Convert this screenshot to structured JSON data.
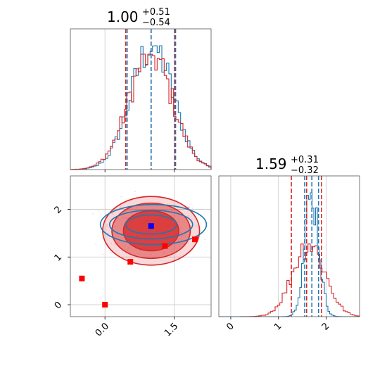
{
  "chart_data": {
    "type": "corner",
    "parameters": [
      "param_0",
      "param_1"
    ],
    "titles": [
      {
        "value": "1.00",
        "plus": "+0.51",
        "minus": "−0.54"
      },
      {
        "value": "1.59",
        "plus": "+0.31",
        "minus": "−0.32"
      }
    ],
    "series_colors": {
      "red": "#d62728",
      "blue": "#1f77b4"
    },
    "hist_x_range": [
      -0.75,
      2.3
    ],
    "param1_range": [
      -0.25,
      2.7
    ],
    "top_histogram": {
      "red_quantiles": [
        0.45,
        1.0,
        1.51
      ],
      "blue_quantiles": [
        0.48,
        1.0,
        1.53
      ],
      "grid_x": [
        0.0,
        1.5
      ],
      "x_tick_values": [
        0.0,
        1.5
      ]
    },
    "right_histogram": {
      "x_range": [
        -0.25,
        2.7
      ],
      "red_quantiles": [
        1.27,
        1.59,
        1.9
      ],
      "blue_quantiles": [
        1.55,
        1.7,
        1.84
      ],
      "grid_x": [
        0,
        1,
        2
      ],
      "x_ticks": [
        {
          "value": 0,
          "label": "0"
        },
        {
          "value": 1,
          "label": "1"
        },
        {
          "value": 2,
          "label": "2"
        }
      ]
    },
    "scatter_panel": {
      "x_ticks": [
        {
          "value": 0.0,
          "label": "0.0"
        },
        {
          "value": 1.5,
          "label": "1.5"
        }
      ],
      "y_ticks": [
        {
          "value": 0,
          "label": "0"
        },
        {
          "value": 1,
          "label": "1"
        },
        {
          "value": 2,
          "label": "2"
        }
      ],
      "red_points": [
        {
          "x": -0.5,
          "y": 0.55
        },
        {
          "x": 0.0,
          "y": 0.0
        },
        {
          "x": 0.55,
          "y": 0.9
        },
        {
          "x": 1.3,
          "y": 1.23
        },
        {
          "x": 1.95,
          "y": 1.37
        }
      ],
      "blue_point": {
        "x": 1.0,
        "y": 1.65
      },
      "red_contours": [
        {
          "cx": 1.0,
          "cy": 1.55,
          "rx": 0.6,
          "ry": 0.42,
          "opacity": 0.75
        },
        {
          "cx": 1.0,
          "cy": 1.55,
          "rx": 0.85,
          "ry": 0.58,
          "opacity": 0.45
        },
        {
          "cx": 1.0,
          "cy": 1.55,
          "rx": 1.05,
          "ry": 0.72,
          "opacity": 0.18
        }
      ],
      "blue_contours": [
        {
          "cx": 1.0,
          "cy": 1.68,
          "rx": 0.55,
          "ry": 0.2
        },
        {
          "cx": 1.0,
          "cy": 1.68,
          "rx": 0.9,
          "ry": 0.3
        },
        {
          "cx": 1.05,
          "cy": 1.68,
          "rx": 1.15,
          "ry": 0.42
        }
      ]
    }
  }
}
